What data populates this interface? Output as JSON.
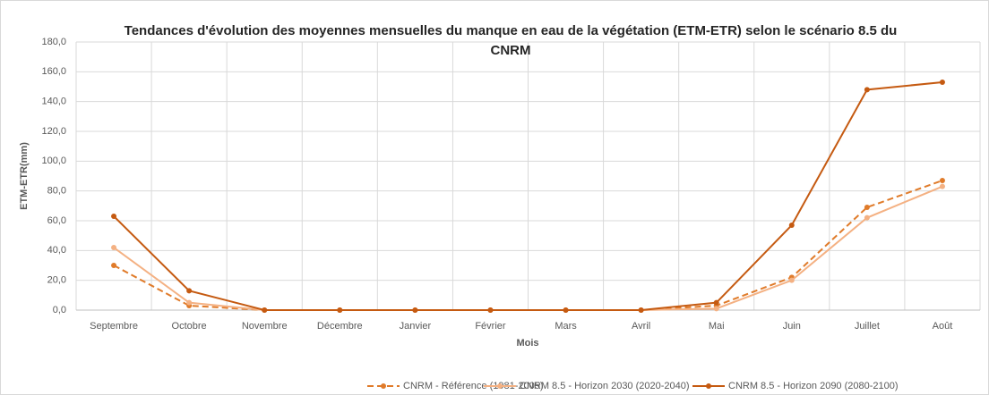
{
  "chart_data": {
    "type": "line",
    "title": "Tendances d'évolution des moyennes mensuelles du manque en eau de la végétation (ETM-ETR) selon le scénario 8.5 du CNRM",
    "x_label": "Mois",
    "y_label": "ETM-ETR(mm)",
    "categories": [
      "Septembre",
      "Octobre",
      "Novembre",
      "Décembre",
      "Janvier",
      "Février",
      "Mars",
      "Avril",
      "Mai",
      "Juin",
      "Juillet",
      "Août"
    ],
    "series": [
      {
        "name": "CNRM - Référence (1981-2005)",
        "color": "#e07b2a",
        "dashed": true,
        "values": [
          30,
          3,
          0,
          0,
          0,
          0,
          0,
          0,
          3,
          22,
          69,
          87
        ]
      },
      {
        "name": "CNRM 8.5 - Horizon 2030 (2020-2040)",
        "color": "#f4b183",
        "dashed": false,
        "values": [
          42,
          5,
          0,
          0,
          0,
          0,
          0,
          0,
          1,
          20,
          62,
          83
        ]
      },
      {
        "name": "CNRM 8.5 - Horizon 2090 (2080-2100)",
        "color": "#c55a11",
        "dashed": false,
        "values": [
          63,
          13,
          0,
          0,
          0,
          0,
          0,
          0,
          5,
          57,
          148,
          153
        ]
      }
    ],
    "ylim": [
      0,
      180
    ],
    "yticks": [
      {
        "value": 0,
        "label": "0,0"
      },
      {
        "value": 20,
        "label": "20,0"
      },
      {
        "value": 40,
        "label": "40,0"
      },
      {
        "value": 60,
        "label": "60,0"
      },
      {
        "value": 80,
        "label": "80,0"
      },
      {
        "value": 100,
        "label": "100,0"
      },
      {
        "value": 120,
        "label": "120,0"
      },
      {
        "value": 140,
        "label": "140,0"
      },
      {
        "value": 160,
        "label": "160,0"
      },
      {
        "value": 180,
        "label": "180,0"
      }
    ],
    "grid": true,
    "legend": "bottom"
  }
}
